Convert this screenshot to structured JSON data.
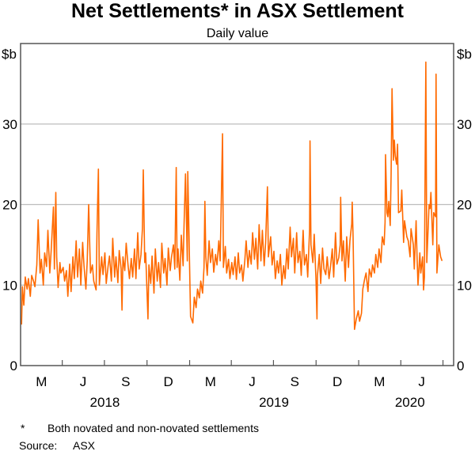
{
  "chart_data": {
    "type": "line",
    "title": "Net Settlements* in ASX Settlement",
    "subtitle": "Daily value",
    "ylabel_left": "$b",
    "ylabel_right": "$b",
    "ylim": [
      0,
      40
    ],
    "yticks": [
      0,
      10,
      20,
      30
    ],
    "xlim": [
      "2018-01-01",
      "2020-07-24"
    ],
    "x_quarter_labels": [
      "M",
      "J",
      "S",
      "D",
      "M",
      "J",
      "S",
      "D",
      "M",
      "J"
    ],
    "x_year_labels": [
      "2018",
      "2019",
      "2020"
    ],
    "grid": "horizontal",
    "line_color": "#ff6a00",
    "footnote_marker": "*",
    "footnote": "Both novated and non-novated settlements",
    "source_label": "Source:",
    "source": "ASX",
    "series": [
      {
        "points": [
          [
            "2018-01-03",
            5.1
          ],
          [
            "2018-01-05",
            9.8
          ],
          [
            "2018-01-08",
            7.5
          ],
          [
            "2018-01-11",
            11
          ],
          [
            "2018-01-15",
            9.5
          ],
          [
            "2018-01-18",
            10.8
          ],
          [
            "2018-01-22",
            8.6
          ],
          [
            "2018-01-25",
            11.2
          ],
          [
            "2018-01-29",
            10.5
          ],
          [
            "2018-02-01",
            9.8
          ],
          [
            "2018-02-05",
            12.5
          ],
          [
            "2018-02-08",
            18.1
          ],
          [
            "2018-02-12",
            11.5
          ],
          [
            "2018-02-15",
            13.2
          ],
          [
            "2018-02-19",
            10
          ],
          [
            "2018-02-22",
            14
          ],
          [
            "2018-02-26",
            12.3
          ],
          [
            "2018-03-01",
            16.8
          ],
          [
            "2018-03-05",
            11.5
          ],
          [
            "2018-03-08",
            14.2
          ],
          [
            "2018-03-13",
            19.7
          ],
          [
            "2018-03-15",
            12
          ],
          [
            "2018-03-18",
            21.5
          ],
          [
            "2018-03-20",
            13.5
          ],
          [
            "2018-03-23",
            9.7
          ],
          [
            "2018-03-27",
            12.8
          ],
          [
            "2018-03-29",
            11.5
          ],
          [
            "2018-04-03",
            12.2
          ],
          [
            "2018-04-06",
            10.5
          ],
          [
            "2018-04-10",
            11.8
          ],
          [
            "2018-04-13",
            8.6
          ],
          [
            "2018-04-17",
            12.6
          ],
          [
            "2018-04-20",
            9.2
          ],
          [
            "2018-04-24",
            13.5
          ],
          [
            "2018-04-27",
            10.8
          ],
          [
            "2018-05-01",
            15.5
          ],
          [
            "2018-05-04",
            11
          ],
          [
            "2018-05-08",
            14.5
          ],
          [
            "2018-05-11",
            10
          ],
          [
            "2018-05-15",
            15.3
          ],
          [
            "2018-05-18",
            12.4
          ],
          [
            "2018-05-22",
            9.5
          ],
          [
            "2018-05-25",
            13
          ],
          [
            "2018-05-28",
            20
          ],
          [
            "2018-06-01",
            11.5
          ],
          [
            "2018-06-05",
            12.5
          ],
          [
            "2018-06-08",
            10.5
          ],
          [
            "2018-06-13",
            9.4
          ],
          [
            "2018-06-15",
            16.5
          ],
          [
            "2018-06-18",
            24.4
          ],
          [
            "2018-06-20",
            10
          ],
          [
            "2018-06-25",
            13.5
          ],
          [
            "2018-06-28",
            11.3
          ],
          [
            "2018-07-02",
            14
          ],
          [
            "2018-07-05",
            10.2
          ],
          [
            "2018-07-09",
            12.4
          ],
          [
            "2018-07-12",
            13.6
          ],
          [
            "2018-07-16",
            10.5
          ],
          [
            "2018-07-19",
            15.8
          ],
          [
            "2018-07-23",
            11
          ],
          [
            "2018-07-26",
            13.5
          ],
          [
            "2018-07-30",
            10.3
          ],
          [
            "2018-08-02",
            14.3
          ],
          [
            "2018-08-06",
            12
          ],
          [
            "2018-08-08",
            6.9
          ],
          [
            "2018-08-10",
            13.5
          ],
          [
            "2018-08-14",
            11.8
          ],
          [
            "2018-08-17",
            15.2
          ],
          [
            "2018-08-21",
            12.5
          ],
          [
            "2018-08-24",
            10.8
          ],
          [
            "2018-08-28",
            13.3
          ],
          [
            "2018-08-31",
            11
          ],
          [
            "2018-09-04",
            14.5
          ],
          [
            "2018-09-07",
            10.8
          ],
          [
            "2018-09-11",
            16.5
          ],
          [
            "2018-09-14",
            12
          ],
          [
            "2018-09-18",
            13.8
          ],
          [
            "2018-09-21",
            17
          ],
          [
            "2018-09-23",
            24.3
          ],
          [
            "2018-09-26",
            12.8
          ],
          [
            "2018-09-28",
            14
          ],
          [
            "2018-10-03",
            5.8
          ],
          [
            "2018-10-05",
            12.5
          ],
          [
            "2018-10-09",
            10.2
          ],
          [
            "2018-10-12",
            13.6
          ],
          [
            "2018-10-16",
            9
          ],
          [
            "2018-10-19",
            14.5
          ],
          [
            "2018-10-23",
            10.5
          ],
          [
            "2018-10-26",
            12.8
          ],
          [
            "2018-10-30",
            9.7
          ],
          [
            "2018-11-02",
            15.2
          ],
          [
            "2018-11-06",
            11.5
          ],
          [
            "2018-11-09",
            13.3
          ],
          [
            "2018-11-13",
            10
          ],
          [
            "2018-11-16",
            14.6
          ],
          [
            "2018-11-20",
            11.8
          ],
          [
            "2018-11-23",
            13.5
          ],
          [
            "2018-11-27",
            15
          ],
          [
            "2018-11-30",
            12
          ],
          [
            "2018-12-03",
            24.6
          ],
          [
            "2018-12-05",
            12.2
          ],
          [
            "2018-12-07",
            14.5
          ],
          [
            "2018-12-11",
            10.6
          ],
          [
            "2018-12-14",
            16.2
          ],
          [
            "2018-12-18",
            12.4
          ],
          [
            "2018-12-20",
            17.5
          ],
          [
            "2018-12-23",
            23.8
          ],
          [
            "2018-12-27",
            13
          ],
          [
            "2018-12-28",
            24.1
          ],
          [
            "2019-01-03",
            6.1
          ],
          [
            "2019-01-08",
            5.3
          ],
          [
            "2019-01-11",
            8.5
          ],
          [
            "2019-01-15",
            7.2
          ],
          [
            "2019-01-18",
            9.5
          ],
          [
            "2019-01-22",
            8.4
          ],
          [
            "2019-01-25",
            10.5
          ],
          [
            "2019-01-29",
            9
          ],
          [
            "2019-02-01",
            12.2
          ],
          [
            "2019-02-03",
            20.4
          ],
          [
            "2019-02-05",
            13.5
          ],
          [
            "2019-02-08",
            11.2
          ],
          [
            "2019-02-12",
            15.5
          ],
          [
            "2019-02-15",
            12.8
          ],
          [
            "2019-02-19",
            14.5
          ],
          [
            "2019-02-22",
            11.6
          ],
          [
            "2019-02-26",
            13.8
          ],
          [
            "2019-03-01",
            12.5
          ],
          [
            "2019-03-05",
            15.5
          ],
          [
            "2019-03-08",
            13
          ],
          [
            "2019-03-13",
            28.8
          ],
          [
            "2019-03-15",
            12.2
          ],
          [
            "2019-03-19",
            14.8
          ],
          [
            "2019-03-22",
            11.5
          ],
          [
            "2019-03-26",
            13.2
          ],
          [
            "2019-03-29",
            10.8
          ],
          [
            "2019-04-02",
            12.8
          ],
          [
            "2019-04-05",
            11.3
          ],
          [
            "2019-04-09",
            13.5
          ],
          [
            "2019-04-12",
            10.7
          ],
          [
            "2019-04-16",
            14
          ],
          [
            "2019-04-19",
            11.5
          ],
          [
            "2019-04-23",
            12.5
          ],
          [
            "2019-04-26",
            10.5
          ],
          [
            "2019-04-30",
            13
          ],
          [
            "2019-05-03",
            15.5
          ],
          [
            "2019-05-07",
            12.2
          ],
          [
            "2019-05-10",
            14.3
          ],
          [
            "2019-05-14",
            12.6
          ],
          [
            "2019-05-17",
            16.5
          ],
          [
            "2019-05-21",
            13.2
          ],
          [
            "2019-05-24",
            15.8
          ],
          [
            "2019-05-28",
            12
          ],
          [
            "2019-05-31",
            17.5
          ],
          [
            "2019-06-04",
            13
          ],
          [
            "2019-06-07",
            16.8
          ],
          [
            "2019-06-11",
            12.4
          ],
          [
            "2019-06-14",
            15.2
          ],
          [
            "2019-06-18",
            22.2
          ],
          [
            "2019-06-20",
            13.5
          ],
          [
            "2019-06-25",
            16
          ],
          [
            "2019-06-28",
            12.5
          ],
          [
            "2019-07-02",
            14.2
          ],
          [
            "2019-07-05",
            10.8
          ],
          [
            "2019-07-09",
            13
          ],
          [
            "2019-07-12",
            11.5
          ],
          [
            "2019-07-16",
            13.8
          ],
          [
            "2019-07-19",
            10
          ],
          [
            "2019-07-23",
            12.4
          ],
          [
            "2019-07-26",
            10.8
          ],
          [
            "2019-07-30",
            14.5
          ],
          [
            "2019-08-02",
            12
          ],
          [
            "2019-08-06",
            17.2
          ],
          [
            "2019-08-09",
            13.5
          ],
          [
            "2019-08-13",
            15.8
          ],
          [
            "2019-08-16",
            11.5
          ],
          [
            "2019-08-20",
            16.5
          ],
          [
            "2019-08-23",
            12.8
          ],
          [
            "2019-08-27",
            14.2
          ],
          [
            "2019-08-30",
            11.2
          ],
          [
            "2019-09-03",
            16.8
          ],
          [
            "2019-09-06",
            12.5
          ],
          [
            "2019-09-10",
            13.8
          ],
          [
            "2019-09-13",
            11
          ],
          [
            "2019-09-17",
            17
          ],
          [
            "2019-09-18",
            27.9
          ],
          [
            "2019-09-20",
            15
          ],
          [
            "2019-09-24",
            12.8
          ],
          [
            "2019-09-27",
            16.3
          ],
          [
            "2019-10-01",
            10.5
          ],
          [
            "2019-10-03",
            5.8
          ],
          [
            "2019-10-04",
            11.2
          ],
          [
            "2019-10-08",
            13.8
          ],
          [
            "2019-10-11",
            10.2
          ],
          [
            "2019-10-15",
            14.6
          ],
          [
            "2019-10-18",
            12
          ],
          [
            "2019-10-22",
            11.3
          ],
          [
            "2019-10-25",
            13.5
          ],
          [
            "2019-10-29",
            10.8
          ],
          [
            "2019-11-01",
            12.2
          ],
          [
            "2019-11-05",
            14.5
          ],
          [
            "2019-11-08",
            11
          ],
          [
            "2019-11-12",
            16.5
          ],
          [
            "2019-11-15",
            12.6
          ],
          [
            "2019-11-19",
            13.4
          ],
          [
            "2019-11-22",
            15
          ],
          [
            "2019-11-23",
            20.9
          ],
          [
            "2019-11-26",
            13
          ],
          [
            "2019-11-29",
            15.5
          ],
          [
            "2019-12-03",
            10.5
          ],
          [
            "2019-12-06",
            16
          ],
          [
            "2019-12-10",
            12.2
          ],
          [
            "2019-12-13",
            15.5
          ],
          [
            "2019-12-17",
            17.6
          ],
          [
            "2019-12-18",
            20.3
          ],
          [
            "2019-12-20",
            16
          ],
          [
            "2019-12-23",
            4.5
          ],
          [
            "2019-12-27",
            5.8
          ],
          [
            "2019-12-31",
            6.8
          ],
          [
            "2020-01-03",
            5.5
          ],
          [
            "2020-01-07",
            6.5
          ],
          [
            "2020-01-10",
            9.5
          ],
          [
            "2020-01-14",
            10.8
          ],
          [
            "2020-01-17",
            11.5
          ],
          [
            "2020-01-21",
            9.2
          ],
          [
            "2020-01-24",
            12
          ],
          [
            "2020-01-28",
            11
          ],
          [
            "2020-01-31",
            12.5
          ],
          [
            "2020-02-04",
            11.5
          ],
          [
            "2020-02-07",
            13.8
          ],
          [
            "2020-02-11",
            12.2
          ],
          [
            "2020-02-14",
            14.5
          ],
          [
            "2020-02-18",
            12.8
          ],
          [
            "2020-02-21",
            16
          ],
          [
            "2020-02-25",
            15
          ],
          [
            "2020-02-27",
            17.8
          ],
          [
            "2020-02-28",
            26.2
          ],
          [
            "2020-03-02",
            19
          ],
          [
            "2020-03-04",
            18.5
          ],
          [
            "2020-03-06",
            20.4
          ],
          [
            "2020-03-09",
            17.4
          ],
          [
            "2020-03-11",
            23.5
          ],
          [
            "2020-03-13",
            34.4
          ],
          [
            "2020-03-16",
            25.5
          ],
          [
            "2020-03-18",
            28
          ],
          [
            "2020-03-20",
            26
          ],
          [
            "2020-03-23",
            25
          ],
          [
            "2020-03-25",
            27.5
          ],
          [
            "2020-03-27",
            19
          ],
          [
            "2020-04-01",
            19.2
          ],
          [
            "2020-04-03",
            21.8
          ],
          [
            "2020-04-07",
            15.3
          ],
          [
            "2020-04-09",
            18
          ],
          [
            "2020-04-14",
            16
          ],
          [
            "2020-04-17",
            15.5
          ],
          [
            "2020-04-21",
            13.5
          ],
          [
            "2020-04-23",
            17
          ],
          [
            "2020-04-28",
            15
          ],
          [
            "2020-04-30",
            12
          ],
          [
            "2020-05-04",
            18
          ],
          [
            "2020-05-06",
            13.5
          ],
          [
            "2020-05-08",
            10
          ],
          [
            "2020-05-12",
            14
          ],
          [
            "2020-05-14",
            11.5
          ],
          [
            "2020-05-18",
            13.5
          ],
          [
            "2020-05-20",
            9.4
          ],
          [
            "2020-05-22",
            11
          ],
          [
            "2020-05-25",
            37.7
          ],
          [
            "2020-05-27",
            12.8
          ],
          [
            "2020-06-01",
            20
          ],
          [
            "2020-06-03",
            19.5
          ],
          [
            "2020-06-05",
            21.5
          ],
          [
            "2020-06-09",
            15
          ],
          [
            "2020-06-11",
            19
          ],
          [
            "2020-06-15",
            18.5
          ],
          [
            "2020-06-16",
            36.2
          ],
          [
            "2020-06-18",
            11.5
          ],
          [
            "2020-06-22",
            15
          ],
          [
            "2020-06-26",
            13.5
          ],
          [
            "2020-06-29",
            13
          ]
        ]
      }
    ]
  }
}
